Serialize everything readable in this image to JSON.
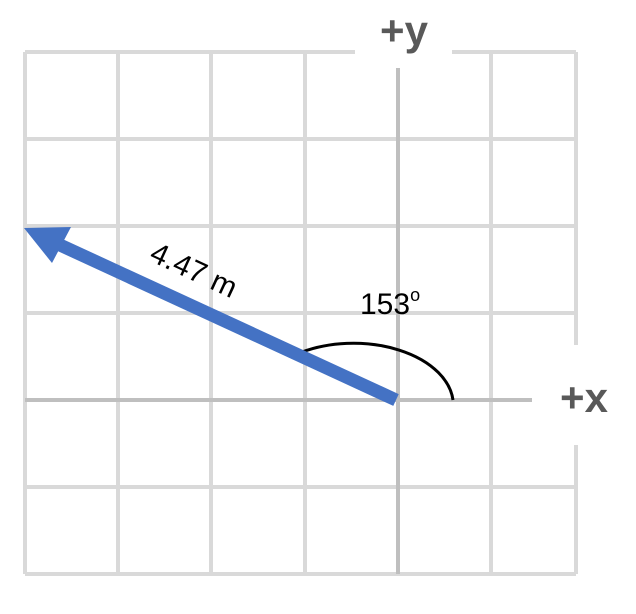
{
  "axes": {
    "x_label": "+x",
    "y_label": "+y"
  },
  "vector": {
    "magnitude_label": "4.47 m",
    "magnitude_m": 4.47,
    "angle_deg": 153,
    "angle_value": "153",
    "angle_unit_mark": "o",
    "color": "#4472C4"
  },
  "grid": {
    "color": "#D9D9D9",
    "axis_color": "#BFBFBF",
    "columns": 6,
    "rows": 6
  }
}
